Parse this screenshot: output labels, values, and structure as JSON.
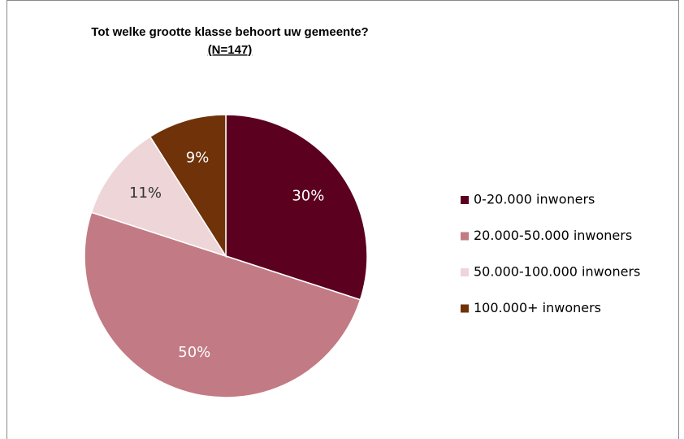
{
  "chart_data": {
    "type": "pie",
    "title": "Tot welke grootte klasse behoort uw gemeente?",
    "subtitle": "(N=147)",
    "categories": [
      "0-20.000 inwoners",
      "20.000-50.000 inwoners",
      "50.000-100.000 inwoners",
      "100.000+ inwoners"
    ],
    "values": [
      30,
      50,
      11,
      9
    ],
    "value_labels": [
      "30%",
      "50%",
      "11%",
      "9%"
    ],
    "colors": [
      "#5c0020",
      "#c27a84",
      "#eed5d8",
      "#6f3209"
    ],
    "label_colors": [
      "#ffffff",
      "#ffffff",
      "#333333",
      "#ffffff"
    ],
    "legend": "right"
  }
}
